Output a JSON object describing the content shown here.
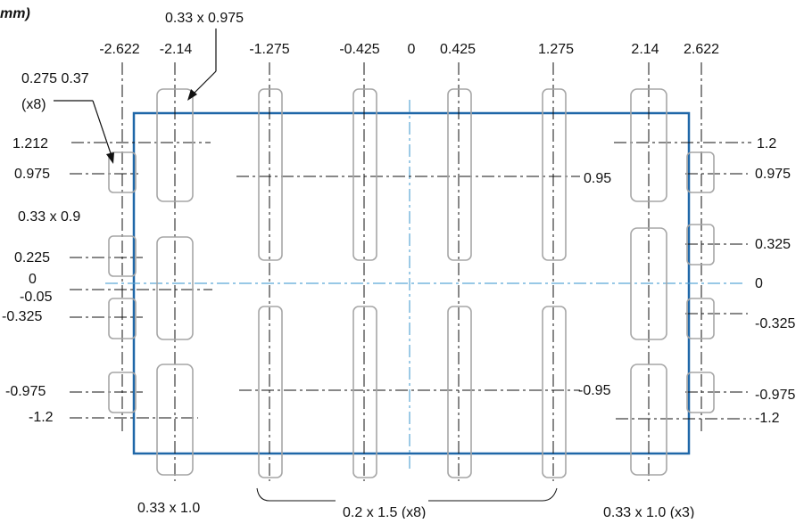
{
  "header": {
    "unit_fragment": "mm)"
  },
  "colors": {
    "outline": "#1f67a8",
    "pad": "#a6a6a6",
    "centerline": "#5aa6d6",
    "dim": "#111111"
  },
  "top_axis_labels": [
    "-2.622",
    "-2.14",
    "-1.275",
    "-0.425",
    "0",
    "0.425",
    "1.275",
    "2.14",
    "2.622"
  ],
  "left_axis_labels": [
    "1.212",
    "0.975",
    "0.225",
    "0",
    "-0.05",
    "-0.325",
    "-0.975",
    "-1.2"
  ],
  "right_axis_labels": [
    "1.2",
    "0.975",
    "0.325",
    "0",
    "-0.325",
    "-0.975",
    "-1.2"
  ],
  "inner_labels": {
    "upper_row": "0.95",
    "lower_row": "-0.95"
  },
  "callouts": {
    "top_pad": "0.33 x 0.975",
    "small_pad_line1": "0.275 0.37",
    "small_pad_line2": "(x8)",
    "left_pad": "0.33 x 0.9"
  },
  "bottom_labels": {
    "left": "0.33 x 1.0",
    "middle": "0.2 x 1.5 (x8)",
    "right": "0.33 x 1.0 (x3)"
  }
}
